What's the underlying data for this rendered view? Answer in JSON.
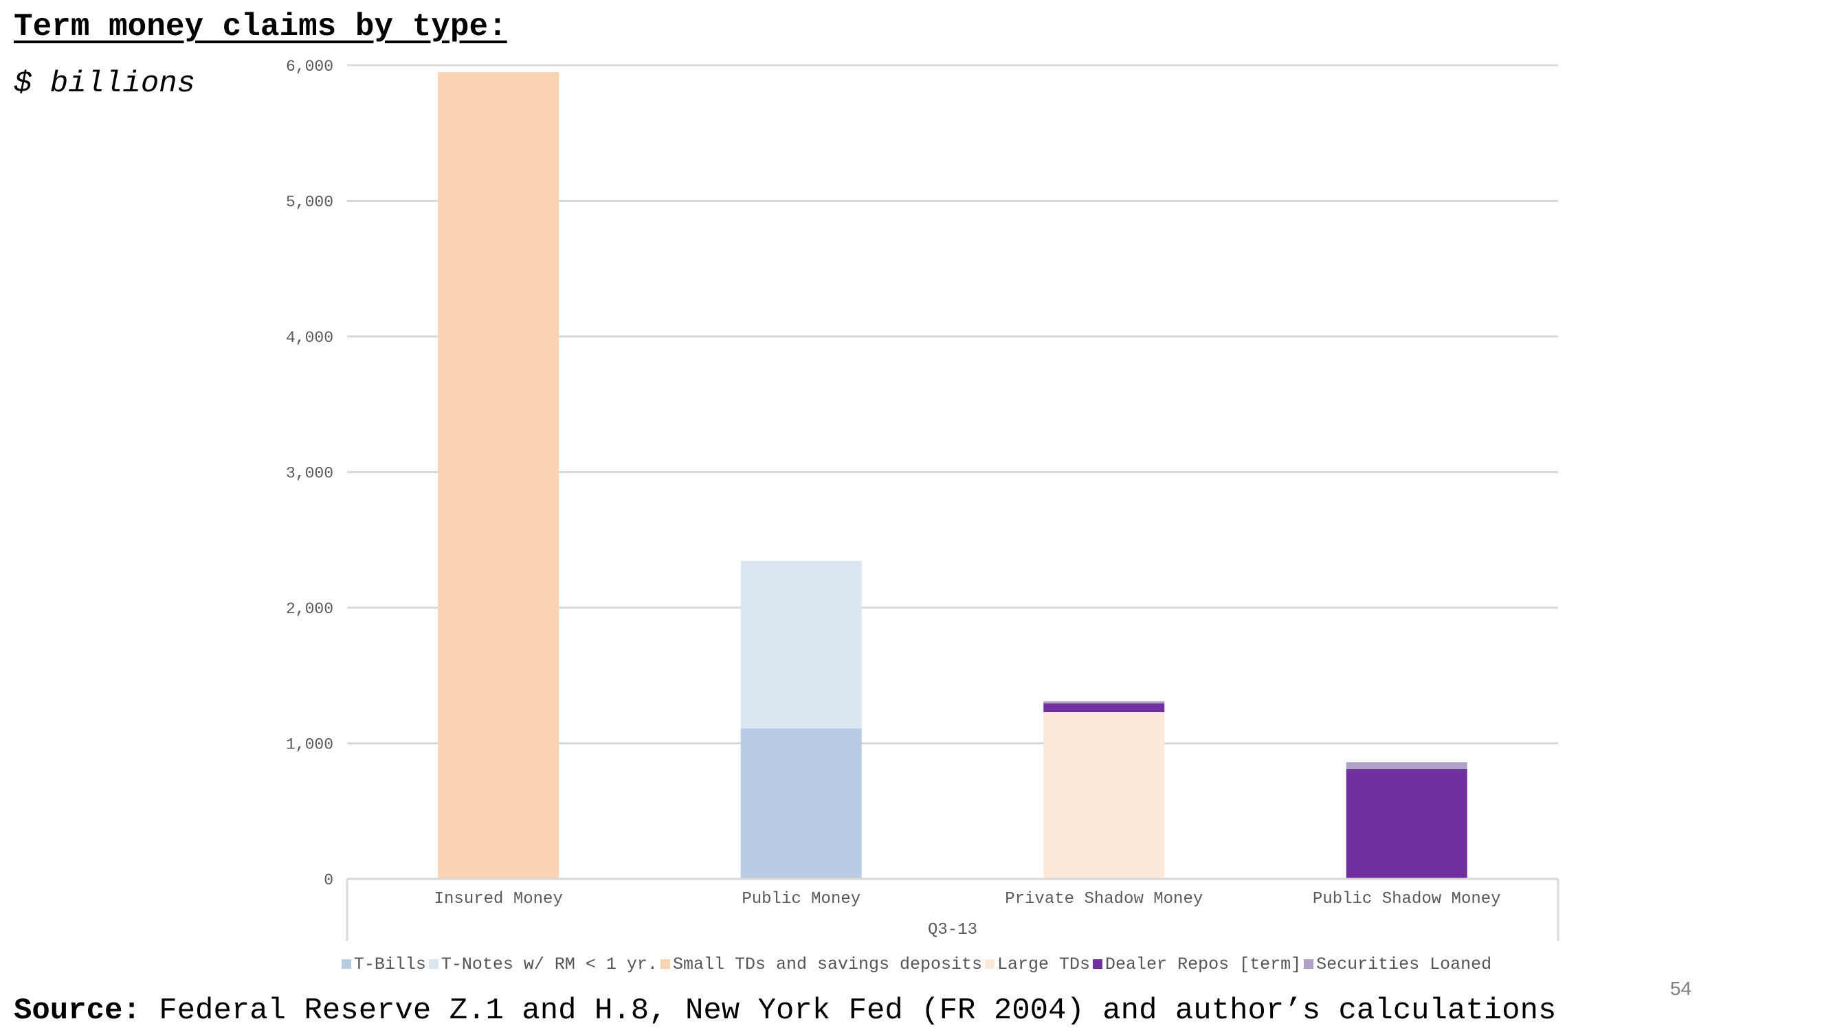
{
  "slide": {
    "title": "Term money claims by type:",
    "subtitle": "$ billions",
    "source_label": "Source:",
    "source_text": " Federal Reserve Z.1 and H.8, New York Fed (FR 2004) and author’s calculations",
    "page_number": "54"
  },
  "chart_data": {
    "type": "bar",
    "stacked": true,
    "categories": [
      "Insured Money",
      "Public Money",
      "Private Shadow Money",
      "Public Shadow Money"
    ],
    "x_group_label": "Q3-13",
    "ylim": [
      0,
      6000
    ],
    "y_ticks": [
      0,
      1000,
      2000,
      3000,
      4000,
      5000,
      6000
    ],
    "y_tick_labels": [
      "0",
      "1,000",
      "2,000",
      "3,000",
      "4,000",
      "5,000",
      "6,000"
    ],
    "grid": true,
    "legend_position": "bottom",
    "series": [
      {
        "name": "T-Bills",
        "color": "#B8CCE4",
        "values": [
          0,
          1110,
          0,
          0
        ]
      },
      {
        "name": "T-Notes w/ RM < 1 yr.",
        "color": "#DCE6F1",
        "values": [
          0,
          1235,
          0,
          0
        ]
      },
      {
        "name": "Small TDs and savings deposits",
        "color": "#FBD4B4",
        "values": [
          5950,
          0,
          0,
          0
        ]
      },
      {
        "name": "Large TDs",
        "color": "#FDE9D9",
        "values": [
          0,
          0,
          1230,
          0
        ]
      },
      {
        "name": "Dealer Repos [term]",
        "color": "#7030A0",
        "values": [
          0,
          0,
          65,
          810
        ]
      },
      {
        "name": "Securities Loaned",
        "color": "#B1A0C7",
        "values": [
          0,
          0,
          15,
          50
        ]
      }
    ]
  }
}
